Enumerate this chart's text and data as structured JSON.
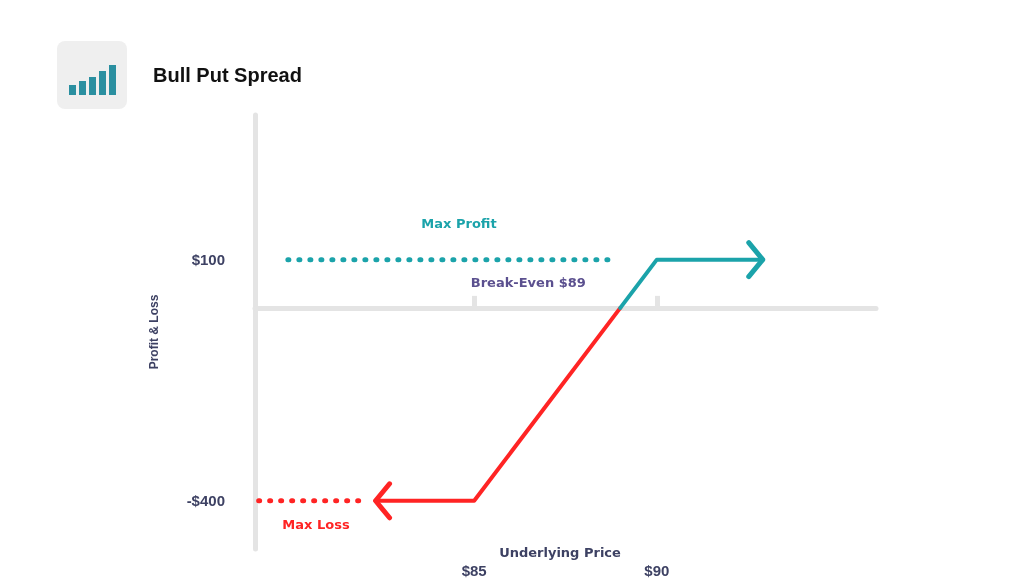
{
  "chart_data": {
    "type": "line",
    "title": "Bull Put Spread",
    "ylabel": "Profit & Loss",
    "xlim": [
      79,
      96
    ],
    "ylim": [
      -500,
      400
    ],
    "xticks": [
      {
        "value": 85,
        "label": "$85"
      },
      {
        "value": 90,
        "label": "$90"
      }
    ],
    "yticks": [
      {
        "value": 100,
        "label": "$100"
      },
      {
        "value": -400,
        "label": "-$400"
      }
    ],
    "grid": false,
    "marker": "none",
    "series": [
      {
        "color": "#ff2424",
        "x": [
          82.3,
          85,
          89
        ],
        "values": [
          -400,
          -400,
          0
        ],
        "line_style": "solid"
      },
      {
        "color": "#1ba3aa",
        "x": [
          89,
          90,
          92.9
        ],
        "values": [
          0,
          100,
          100
        ],
        "line_style": "solid"
      },
      {
        "color": "#1ba3aa",
        "x": [
          79.9,
          88.7
        ],
        "values": [
          100,
          100
        ],
        "line_style": "dotted"
      },
      {
        "color": "#ff2424",
        "x": [
          79.1,
          82.1
        ],
        "values": [
          -400,
          -400
        ],
        "line_style": "dotted"
      }
    ],
    "annotations": [
      "Max Profit",
      "Max Loss",
      {
        "text": "Break-Even $89",
        "x": 89,
        "y": 0
      },
      "Underlying Price"
    ]
  }
}
